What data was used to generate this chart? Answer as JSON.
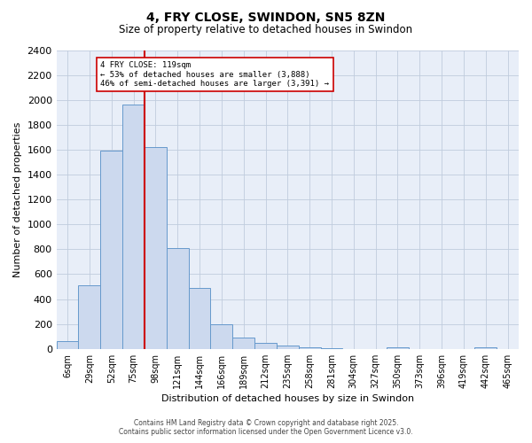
{
  "title": "4, FRY CLOSE, SWINDON, SN5 8ZN",
  "subtitle": "Size of property relative to detached houses in Swindon",
  "xlabel": "Distribution of detached houses by size in Swindon",
  "ylabel": "Number of detached properties",
  "categories": [
    "6sqm",
    "29sqm",
    "52sqm",
    "75sqm",
    "98sqm",
    "121sqm",
    "144sqm",
    "166sqm",
    "189sqm",
    "212sqm",
    "235sqm",
    "258sqm",
    "281sqm",
    "304sqm",
    "327sqm",
    "350sqm",
    "373sqm",
    "396sqm",
    "419sqm",
    "442sqm",
    "465sqm"
  ],
  "values": [
    60,
    510,
    1590,
    1960,
    1620,
    810,
    490,
    195,
    90,
    45,
    25,
    12,
    8,
    0,
    0,
    12,
    0,
    0,
    0,
    15,
    0
  ],
  "bar_color_face": "#ccd9ee",
  "bar_color_edge": "#6699cc",
  "vline_color": "#cc0000",
  "vline_x_idx": 3.5,
  "annotation_title": "4 FRY CLOSE: 119sqm",
  "annotation_line1": "← 53% of detached houses are smaller (3,888)",
  "annotation_line2": "46% of semi-detached houses are larger (3,391) →",
  "annotation_box_color": "#cc0000",
  "ylim": [
    0,
    2400
  ],
  "yticks": [
    0,
    200,
    400,
    600,
    800,
    1000,
    1200,
    1400,
    1600,
    1800,
    2000,
    2200,
    2400
  ],
  "grid_color": "#c0ccdd",
  "bg_color": "#e8eef8",
  "footer1": "Contains HM Land Registry data © Crown copyright and database right 2025.",
  "footer2": "Contains public sector information licensed under the Open Government Licence v3.0."
}
